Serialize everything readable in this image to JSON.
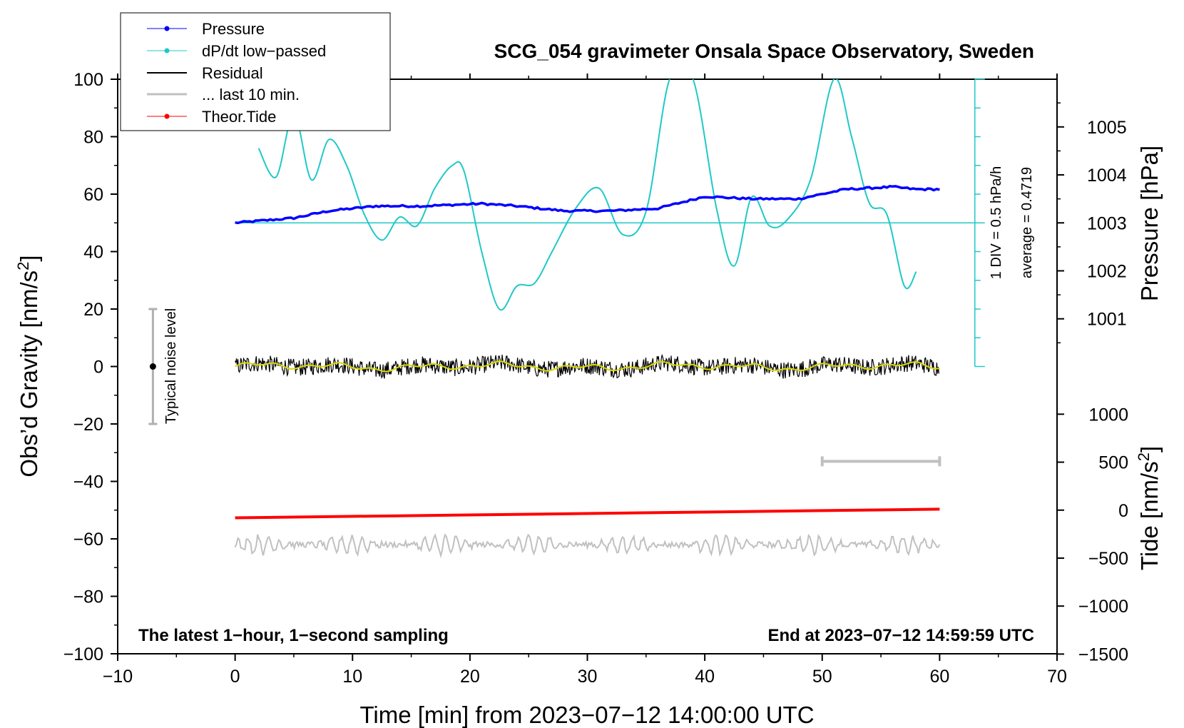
{
  "chart_data": {
    "type": "line",
    "title": "SCG_054 gravimeter Onsala Space Observatory, Sweden",
    "xlabel": "Time [min] from 2023−07−12 14:00:00 UTC",
    "ylabel_left": "Obs’d Gravity [nm/s",
    "ylabel_left_sup": "2",
    "ylabel_left_close": "]",
    "ylabel_pressure": "Pressure [hPa]",
    "ylabel_tide": "Tide [nm/s",
    "ylabel_tide_sup": "2",
    "ylabel_tide_close": "]",
    "xlim": [
      -10,
      70
    ],
    "ylim": [
      -100,
      100
    ],
    "x_ticks": [
      -10,
      0,
      10,
      20,
      30,
      40,
      50,
      60,
      70
    ],
    "x_tick_labels": [
      "−10",
      "0",
      "10",
      "20",
      "30",
      "40",
      "50",
      "60",
      "70"
    ],
    "y_ticks": [
      -100,
      -80,
      -60,
      -40,
      -20,
      0,
      20,
      40,
      60,
      80,
      100
    ],
    "y_tick_labels": [
      "−100",
      "−80",
      "−60",
      "−40",
      "−20",
      "0",
      "20",
      "40",
      "60",
      "80",
      "100"
    ],
    "pressure_ticks": [
      1001,
      1002,
      1003,
      1004,
      1005
    ],
    "pressure_tick_labels": [
      "1001",
      "1002",
      "1003",
      "1004",
      "1005"
    ],
    "tide_ticks": [
      -1500,
      -1000,
      -500,
      0,
      500,
      1000
    ],
    "tide_tick_labels": [
      "−1500",
      "−1000",
      "−500",
      "0",
      "500",
      "1000"
    ],
    "legend": [
      {
        "label": "Pressure",
        "color": "#0000ff",
        "marker": true
      },
      {
        "label": "dP/dt low−passed",
        "color": "#20c8c8",
        "marker": true
      },
      {
        "label": "Residual",
        "color": "#000000",
        "marker": false
      },
      {
        "label": "... last 10 min.",
        "color": "#c0c0c0",
        "marker": false
      },
      {
        "label": "Theor.Tide",
        "color": "#ff0000",
        "marker": true
      }
    ],
    "series": [
      {
        "name": "Pressure",
        "color": "#0000ff",
        "unit": "hPa",
        "x": [
          0,
          5,
          8,
          12,
          16,
          21,
          24,
          28,
          32,
          36,
          40,
          44,
          48,
          52,
          56,
          58,
          60
        ],
        "values": [
          1003.0,
          1003.1,
          1003.25,
          1003.35,
          1003.35,
          1003.4,
          1003.35,
          1003.25,
          1003.25,
          1003.3,
          1003.55,
          1003.5,
          1003.5,
          1003.7,
          1003.75,
          1003.7,
          1003.7
        ]
      },
      {
        "name": "dP/dt low−passed",
        "color": "#20c8c8",
        "unit": "nm/s2 display scale",
        "x": [
          2,
          3.5,
          5,
          6.5,
          8,
          9.5,
          11,
          12.5,
          14,
          15.5,
          17,
          18.5,
          19.5,
          21,
          22.5,
          24,
          25.5,
          27,
          29,
          31,
          33,
          35,
          37,
          39,
          41,
          42.5,
          44,
          45.5,
          47,
          49,
          51,
          52.5,
          54,
          55.5,
          57,
          58
        ],
        "values": [
          76,
          66,
          88,
          65,
          79,
          70,
          53,
          44,
          52,
          49,
          62,
          70,
          68,
          40,
          20,
          28,
          29,
          40,
          55,
          62,
          46,
          54,
          100,
          100,
          55,
          35,
          59,
          49,
          51,
          65,
          100,
          80,
          57,
          53,
          28,
          33
        ]
      },
      {
        "name": "Residual",
        "color": "#000000",
        "x": [
          0,
          60
        ],
        "values": [
          0,
          0
        ],
        "noise_amplitude": 3
      },
      {
        "name": "... last 10 min.",
        "color": "#c0c0c0",
        "x": [
          0,
          60
        ],
        "values": [
          -62,
          -62
        ],
        "oscillation_amplitude": 3
      },
      {
        "name": "Theor.Tide",
        "color": "#ff0000",
        "unit": "nm/s2 (tide axis)",
        "x": [
          0,
          60
        ],
        "values": [
          -80,
          10
        ]
      }
    ],
    "pressure_reference_line": 1003,
    "annotations": {
      "scale_bar": "1 DIV = 0.5 hPa/h",
      "average": "average = 0.4719",
      "noise_label": "Typical noise level",
      "noise_bar_range": [
        -20,
        20
      ],
      "latest_note": "The latest 1−hour, 1−second sampling",
      "end_note": "End at 2023−07−12 14:59:59 UTC",
      "ten_min_bar": [
        50,
        60
      ],
      "ten_min_bar_value": -33
    }
  }
}
